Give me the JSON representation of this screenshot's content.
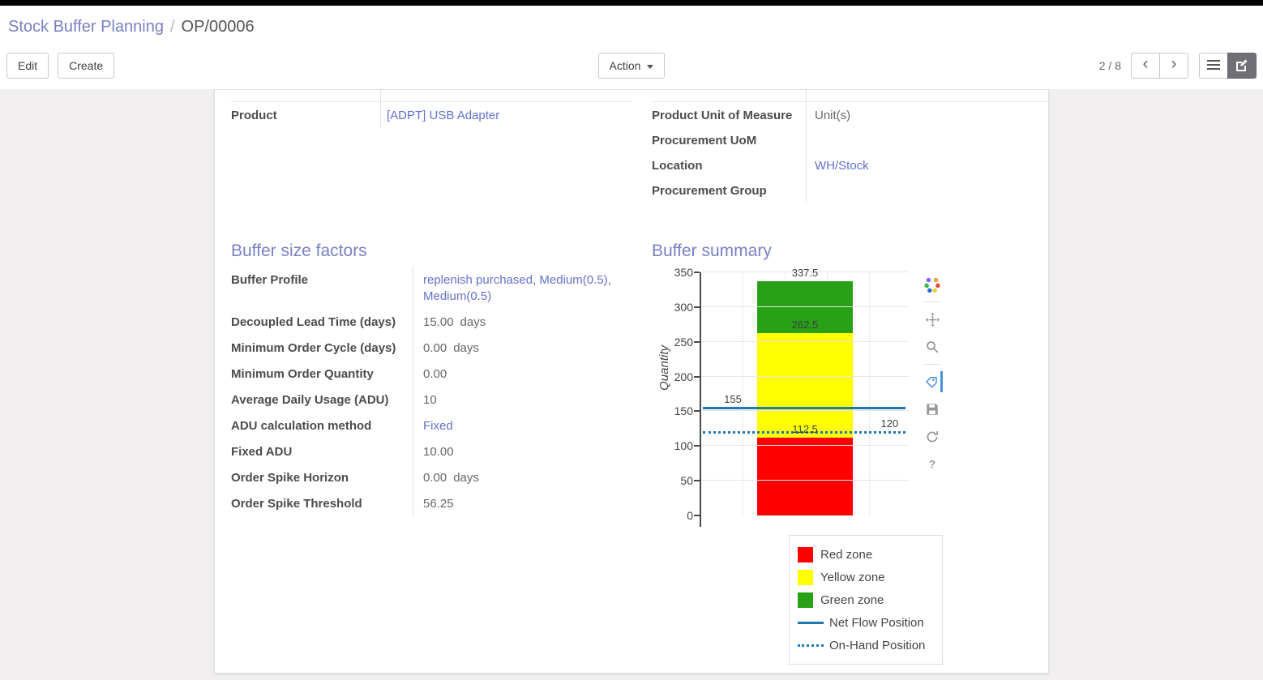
{
  "colors": {
    "accent": "#7a80c2",
    "link": "#6271cf"
  },
  "breadcrumb": {
    "section": "Stock Buffer Planning",
    "separator": "/",
    "record": "OP/00006"
  },
  "control_panel": {
    "edit": "Edit",
    "create": "Create",
    "action": "Action",
    "pager": "2 / 8",
    "prev": "‹",
    "next": "›"
  },
  "form": {
    "top_left": [
      {
        "label": "Product",
        "value": "[ADPT] USB Adapter",
        "link": true
      }
    ],
    "top_right": [
      {
        "label": "Product Unit of Measure",
        "value": "Unit(s)"
      },
      {
        "label": "Procurement UoM",
        "value": ""
      },
      {
        "label": "Location",
        "value": "WH/Stock",
        "link": true
      },
      {
        "label": "Procurement Group",
        "value": ""
      }
    ],
    "factors_title": "Buffer size factors",
    "factors": [
      {
        "label": "Buffer Profile",
        "value": "replenish purchased, Medium(0.5), Medium(0.5)",
        "link": true
      },
      {
        "label": "Decoupled Lead Time (days)",
        "value": "15.00",
        "suffix": "days"
      },
      {
        "label": "Minimum Order Cycle (days)",
        "value": "0.00",
        "suffix": "days"
      },
      {
        "label": "Minimum Order Quantity",
        "value": "0.00"
      },
      {
        "label": "Average Daily Usage (ADU)",
        "value": "10"
      },
      {
        "label": "ADU calculation method",
        "value": "Fixed",
        "link": true
      },
      {
        "label": "Fixed ADU",
        "value": "10.00"
      },
      {
        "label": "Order Spike Horizon",
        "value": "0.00",
        "suffix": "days"
      },
      {
        "label": "Order Spike Threshold",
        "value": "56.25"
      }
    ],
    "summary_title": "Buffer summary"
  },
  "chart_data": {
    "type": "bar",
    "title": "Buffer summary",
    "ylabel": "Quantity",
    "ylim": [
      0,
      350
    ],
    "yticks": [
      0,
      50,
      100,
      150,
      200,
      250,
      300,
      350
    ],
    "grid": true,
    "zones": [
      {
        "name": "Red zone",
        "from": 0,
        "to": 112.5,
        "color": "#ff0000"
      },
      {
        "name": "Yellow zone",
        "from": 112.5,
        "to": 262.5,
        "color": "#ffff00"
      },
      {
        "name": "Green zone",
        "from": 262.5,
        "to": 337.5,
        "color": "#28a117"
      }
    ],
    "lines": [
      {
        "name": "Net Flow Position",
        "value": 155,
        "style": "solid",
        "color": "#1f77b4"
      },
      {
        "name": "On-Hand Position",
        "value": 120,
        "style": "dotted",
        "color": "#1f77b4"
      }
    ],
    "annotations": [
      {
        "text": "337.5",
        "y": 337.5,
        "anchor": "center"
      },
      {
        "text": "262.5",
        "y": 262.5,
        "anchor": "center"
      },
      {
        "text": "112.5",
        "y": 112.5,
        "anchor": "center"
      },
      {
        "text": "155",
        "y": 155,
        "anchor": "left"
      },
      {
        "text": "120",
        "y": 120,
        "anchor": "right"
      }
    ],
    "legend_position": "bottom-right",
    "legend": [
      {
        "label": "Red zone",
        "swatch": "rect",
        "color": "#ff0000"
      },
      {
        "label": "Yellow zone",
        "swatch": "rect",
        "color": "#ffff00"
      },
      {
        "label": "Green zone",
        "swatch": "rect",
        "color": "#28a117"
      },
      {
        "label": "Net Flow Position",
        "swatch": "line",
        "color": "#1f77b4"
      },
      {
        "label": "On-Hand Position",
        "swatch": "dotted",
        "color": "#1f77b4"
      }
    ],
    "modebar": [
      "plotly-logo",
      "pan-icon",
      "zoom-icon",
      "hover-icon",
      "save-icon",
      "autoscale-icon",
      "help-icon"
    ]
  }
}
